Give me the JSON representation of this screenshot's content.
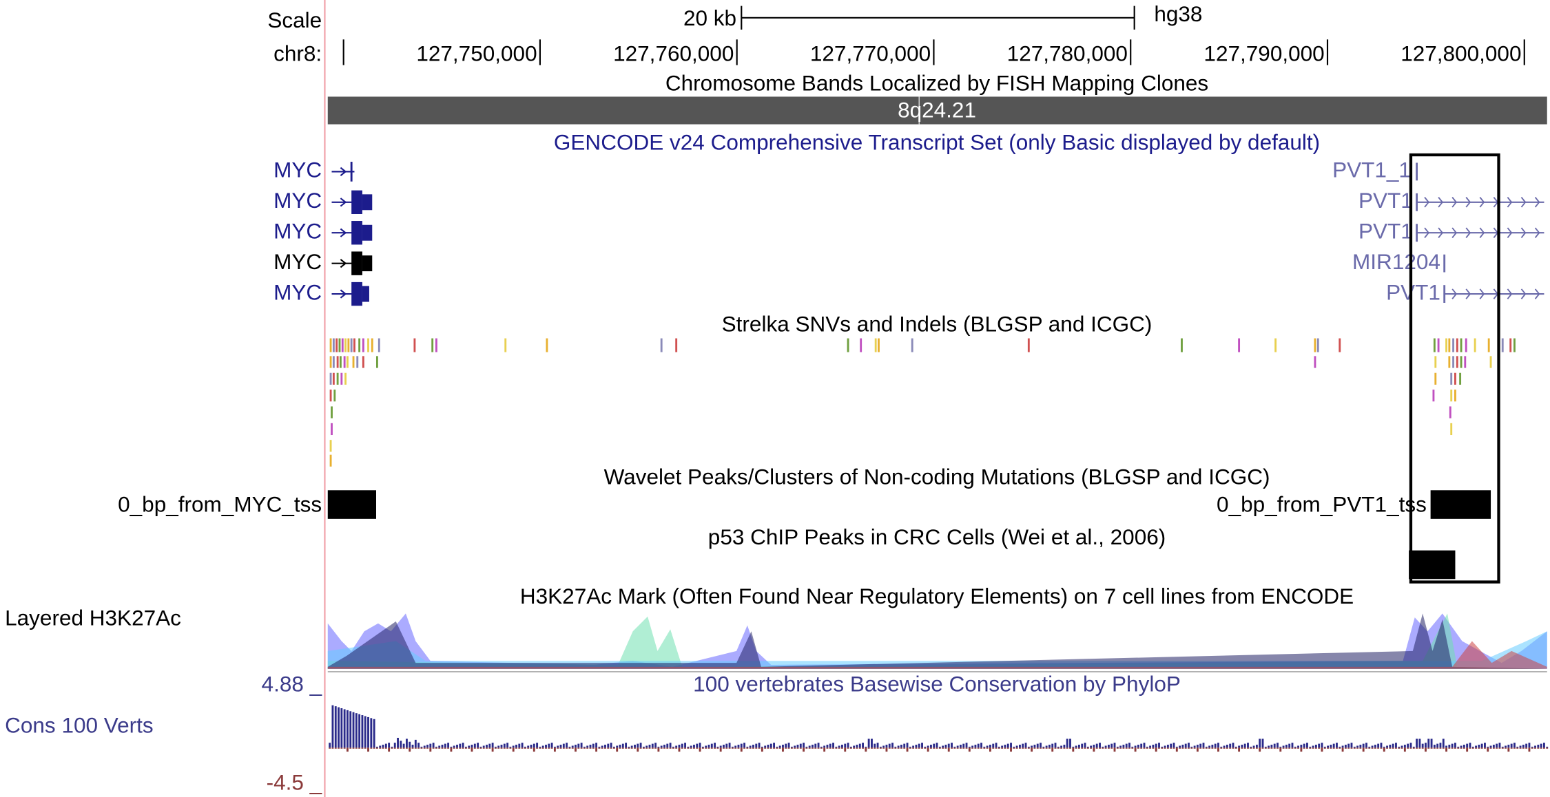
{
  "scale": {
    "label": "Scale",
    "bar_label": "20 kb",
    "assembly": "hg38"
  },
  "ruler": {
    "chrom": "chr8:",
    "ticks": [
      "127,750,000",
      "127,760,000",
      "127,770,000",
      "127,780,000",
      "127,790,000",
      "127,800,000"
    ]
  },
  "bands": {
    "title": "Chromosome Bands Localized by FISH Mapping Clones",
    "band": "8q24.21"
  },
  "genes": {
    "title": "GENCODE v24 Comprehensive Transcript Set (only Basic displayed by default)",
    "left": [
      "MYC",
      "MYC",
      "MYC",
      "MYC",
      "MYC"
    ],
    "right": [
      "PVT1_1",
      "PVT1",
      "PVT1",
      "MIR1204",
      "PVT1"
    ]
  },
  "strelka": {
    "title": "Strelka SNVs and Indels (BLGSP and ICGC)"
  },
  "wavelet": {
    "title": "Wavelet Peaks/Clusters of Non-coding Mutations (BLGSP and ICGC)",
    "items": [
      "0_bp_from_MYC_tss",
      "0_bp_from_PVT1_tss"
    ]
  },
  "p53": {
    "title": "p53 ChIP Peaks in CRC Cells (Wei et al., 2006)"
  },
  "h3k27ac": {
    "title": "H3K27Ac Mark (Often Found Near Regulatory Elements) on 7 cell lines from ENCODE",
    "label": "Layered H3K27Ac"
  },
  "conservation": {
    "title": "100 vertebrates Basewise Conservation by PhyloP",
    "label": "Cons 100 Verts",
    "max": "4.88 _",
    "min": "-4.5 _"
  }
}
